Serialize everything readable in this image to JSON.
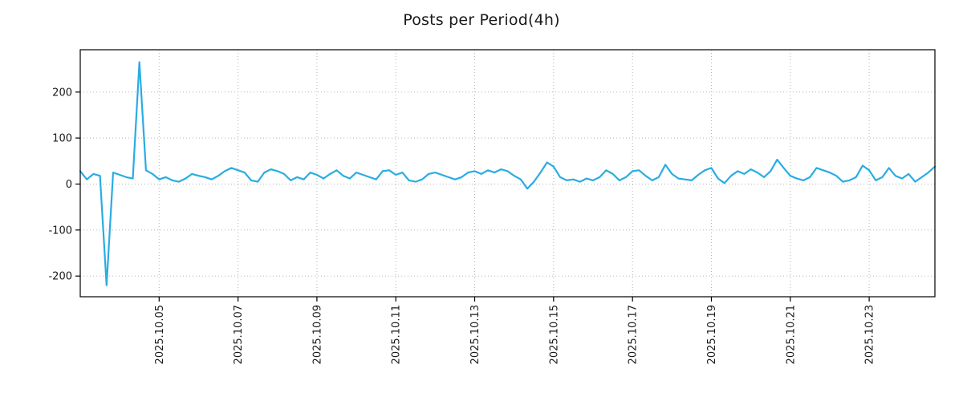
{
  "chart_data": {
    "type": "line",
    "title": "Posts per Period(4h)",
    "xlabel": "",
    "ylabel": "",
    "grid": true,
    "legend": "none",
    "line_color": "#29ace3",
    "grid_color": "#b3b3b3",
    "axis_color": "#000000",
    "text_color": "#1a1a1a",
    "ylim": [
      -245,
      292
    ],
    "xlim": [
      0,
      130
    ],
    "y_ticks": [
      -200,
      -100,
      0,
      100,
      200
    ],
    "x_tick_labels": [
      "2025.10.05",
      "2025.10.07",
      "2025.10.09",
      "2025.10.11",
      "2025.10.13",
      "2025.10.15",
      "2025.10.17",
      "2025.10.19",
      "2025.10.21",
      "2025.10.23"
    ],
    "x_tick_indices": [
      12,
      24,
      36,
      48,
      60,
      72,
      84,
      96,
      108,
      120
    ],
    "series": [
      {
        "name": "posts",
        "values": [
          28,
          10,
          22,
          18,
          -220,
          25,
          20,
          15,
          12,
          265,
          30,
          22,
          10,
          15,
          8,
          5,
          12,
          22,
          18,
          15,
          10,
          18,
          28,
          35,
          30,
          25,
          8,
          5,
          25,
          32,
          28,
          22,
          8,
          15,
          10,
          25,
          20,
          12,
          22,
          30,
          18,
          12,
          25,
          20,
          15,
          10,
          28,
          30,
          20,
          25,
          8,
          5,
          10,
          22,
          25,
          20,
          15,
          10,
          15,
          25,
          28,
          22,
          30,
          25,
          32,
          28,
          18,
          10,
          -10,
          5,
          25,
          47,
          38,
          15,
          8,
          10,
          5,
          12,
          8,
          15,
          30,
          22,
          8,
          15,
          28,
          30,
          18,
          8,
          15,
          42,
          22,
          12,
          10,
          8,
          20,
          30,
          35,
          12,
          2,
          18,
          28,
          22,
          32,
          25,
          15,
          28,
          53,
          35,
          18,
          12,
          8,
          15,
          35,
          30,
          25,
          18,
          5,
          8,
          15,
          40,
          30,
          8,
          15,
          35,
          18,
          12,
          22,
          5,
          15,
          25,
          38
        ]
      }
    ]
  }
}
